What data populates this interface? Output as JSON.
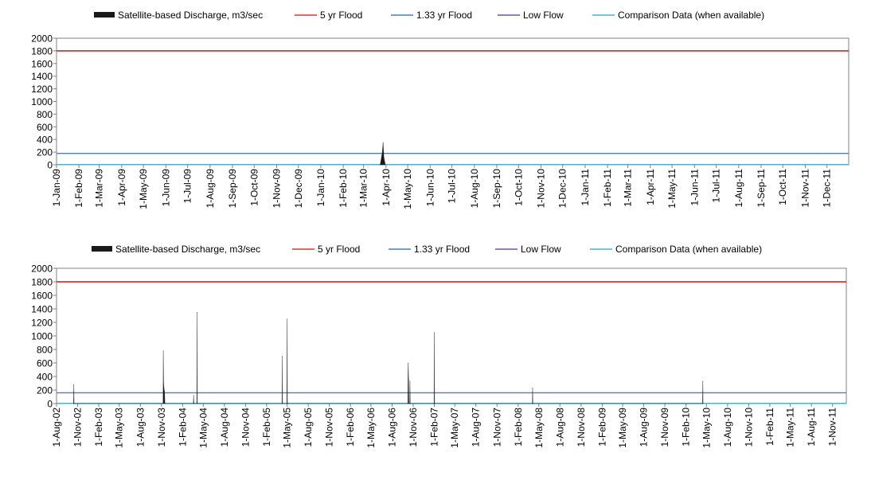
{
  "colors": {
    "discharge": "#1a1a1a",
    "flood5": "#e8312a",
    "flood133": "#4a7ec0",
    "lowflow": "#7a4ea0",
    "comparison": "#4bb0d0",
    "axis": "#808080"
  },
  "legend": [
    {
      "label": "Satellite-based Discharge, m3/sec",
      "icon": "area-swatch",
      "color": "#1a1a1a"
    },
    {
      "label": "5 yr Flood",
      "icon": "line-swatch",
      "color": "#e8312a"
    },
    {
      "label": "1.33 yr Flood",
      "icon": "line-swatch",
      "color": "#4a7ec0"
    },
    {
      "label": "Low Flow",
      "icon": "line-swatch",
      "color": "#7a4ea0"
    },
    {
      "label": "Comparison Data (when available)",
      "icon": "line-swatch",
      "color": "#4bb0d0"
    }
  ],
  "chart_data": [
    {
      "type": "area",
      "ylim": [
        0,
        2000
      ],
      "yticks": [
        0,
        200,
        400,
        600,
        800,
        1000,
        1200,
        1400,
        1600,
        1800,
        2000
      ],
      "xlim": [
        "2009-01-01",
        "2011-12-31"
      ],
      "xtick_labels": [
        "1-Jan-09",
        "1-Feb-09",
        "1-Mar-09",
        "1-Apr-09",
        "1-May-09",
        "1-Jun-09",
        "1-Jul-09",
        "1-Aug-09",
        "1-Sep-09",
        "1-Oct-09",
        "1-Nov-09",
        "1-Dec-09",
        "1-Jan-10",
        "1-Feb-10",
        "1-Mar-10",
        "1-Apr-10",
        "1-May-10",
        "1-Jun-10",
        "1-Jul-10",
        "1-Aug-10",
        "1-Sep-10",
        "1-Oct-10",
        "1-Nov-10",
        "1-Dec-10",
        "1-Jan-11",
        "1-Feb-11",
        "1-Mar-11",
        "1-Apr-11",
        "1-May-11",
        "1-Jun-11",
        "1-Jul-11",
        "1-Aug-11",
        "1-Sep-11",
        "1-Oct-11",
        "1-Nov-11",
        "1-Dec-11"
      ],
      "flood_5yr": 1800,
      "flood_133yr": 180,
      "low_flow": 5,
      "comparison": 3,
      "discharge": [
        {
          "date": "2010-03-24",
          "value": 0
        },
        {
          "date": "2010-03-27",
          "value": 200
        },
        {
          "date": "2010-03-28",
          "value": 350
        },
        {
          "date": "2010-03-29",
          "value": 120
        },
        {
          "date": "2010-03-31",
          "value": 0
        }
      ]
    },
    {
      "type": "area",
      "ylim": [
        0,
        2000
      ],
      "yticks": [
        0,
        200,
        400,
        600,
        800,
        1000,
        1200,
        1400,
        1600,
        1800,
        2000
      ],
      "xlim": [
        "2002-08-01",
        "2011-12-31"
      ],
      "xtick_labels": [
        "1-Aug-02",
        "1-Nov-02",
        "1-Feb-03",
        "1-May-03",
        "1-Aug-03",
        "1-Nov-03",
        "1-Feb-04",
        "1-May-04",
        "1-Aug-04",
        "1-Nov-04",
        "1-Feb-05",
        "1-May-05",
        "1-Aug-05",
        "1-Nov-05",
        "1-Feb-06",
        "1-May-06",
        "1-Aug-06",
        "1-Nov-06",
        "1-Feb-07",
        "1-May-07",
        "1-Aug-07",
        "1-Nov-07",
        "1-Feb-08",
        "1-May-08",
        "1-Aug-08",
        "1-Nov-08",
        "1-Feb-09",
        "1-May-09",
        "1-Aug-09",
        "1-Nov-09",
        "1-Feb-10",
        "1-May-10",
        "1-Aug-10",
        "1-Nov-10",
        "1-Feb-11",
        "1-May-11",
        "1-Aug-11",
        "1-Nov-11"
      ],
      "flood_5yr": 1800,
      "flood_133yr": 160,
      "low_flow": 5,
      "comparison": 3,
      "discharge": [
        {
          "date": "2002-10-14",
          "value": 0
        },
        {
          "date": "2002-10-15",
          "value": 280
        },
        {
          "date": "2002-10-16",
          "value": 0
        },
        {
          "date": "2003-11-08",
          "value": 0
        },
        {
          "date": "2003-11-09",
          "value": 780
        },
        {
          "date": "2003-11-10",
          "value": 300
        },
        {
          "date": "2003-11-12",
          "value": 220
        },
        {
          "date": "2003-11-14",
          "value": 180
        },
        {
          "date": "2003-11-16",
          "value": 0
        },
        {
          "date": "2004-03-19",
          "value": 0
        },
        {
          "date": "2004-03-20",
          "value": 120
        },
        {
          "date": "2004-03-21",
          "value": 0
        },
        {
          "date": "2004-04-03",
          "value": 0
        },
        {
          "date": "2004-04-04",
          "value": 1350
        },
        {
          "date": "2004-04-05",
          "value": 0
        },
        {
          "date": "2005-04-09",
          "value": 0
        },
        {
          "date": "2005-04-10",
          "value": 700
        },
        {
          "date": "2005-04-11",
          "value": 0
        },
        {
          "date": "2005-04-30",
          "value": 0
        },
        {
          "date": "2005-05-01",
          "value": 1250
        },
        {
          "date": "2005-05-02",
          "value": 0
        },
        {
          "date": "2006-10-09",
          "value": 0
        },
        {
          "date": "2006-10-10",
          "value": 600
        },
        {
          "date": "2006-10-12",
          "value": 350
        },
        {
          "date": "2006-10-13",
          "value": 0
        },
        {
          "date": "2006-10-17",
          "value": 0
        },
        {
          "date": "2006-10-18",
          "value": 330
        },
        {
          "date": "2006-10-19",
          "value": 0
        },
        {
          "date": "2007-01-31",
          "value": 0
        },
        {
          "date": "2007-02-01",
          "value": 1050
        },
        {
          "date": "2007-02-02",
          "value": 0
        },
        {
          "date": "2008-04-03",
          "value": 0
        },
        {
          "date": "2008-04-04",
          "value": 230
        },
        {
          "date": "2008-04-05",
          "value": 0
        },
        {
          "date": "2010-04-14",
          "value": 0
        },
        {
          "date": "2010-04-15",
          "value": 330
        },
        {
          "date": "2010-04-16",
          "value": 0
        }
      ]
    }
  ]
}
